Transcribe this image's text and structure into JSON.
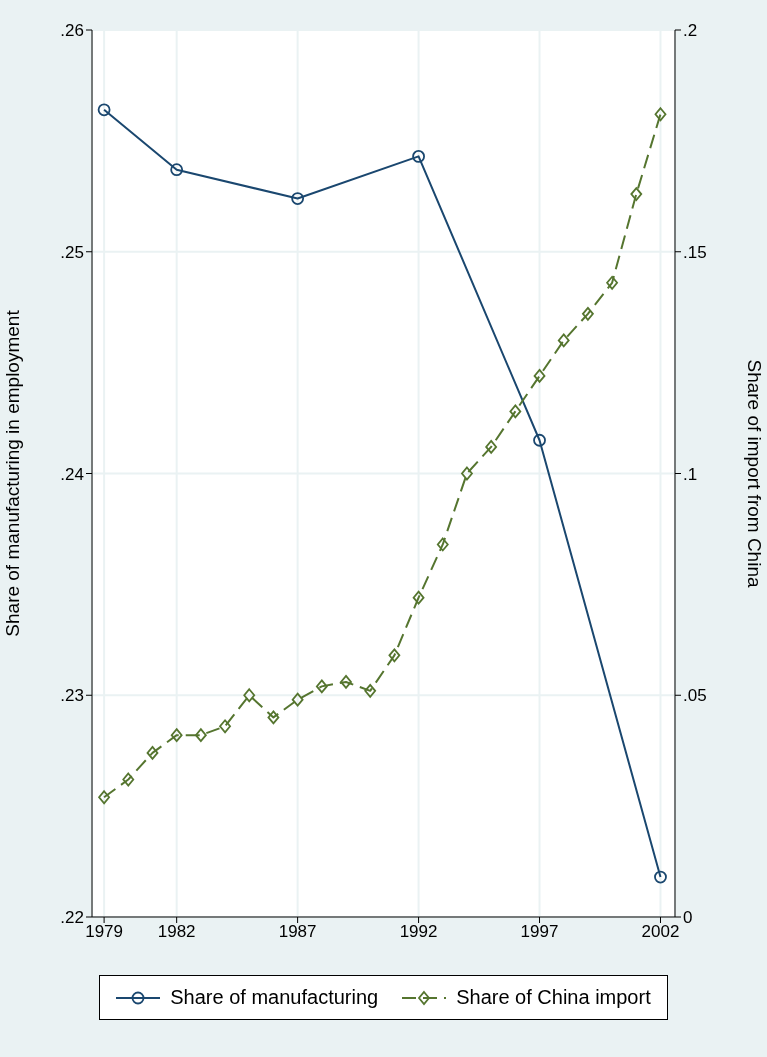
{
  "chart_data": {
    "type": "line",
    "ylabel": "Share of manufacturing in employment",
    "y2label": "Share of import from China",
    "xlim": [
      1978.5,
      2002.6
    ],
    "xticks": [
      1979,
      1982,
      1987,
      1992,
      1997,
      2002
    ],
    "ylim": [
      0.22,
      0.26
    ],
    "yticks": [
      {
        "value": 0.22,
        "label": ".22"
      },
      {
        "value": 0.23,
        "label": ".23"
      },
      {
        "value": 0.24,
        "label": ".24"
      },
      {
        "value": 0.25,
        "label": ".25"
      },
      {
        "value": 0.26,
        "label": ".26"
      }
    ],
    "y2lim": [
      0,
      0.2
    ],
    "y2ticks": [
      0,
      {
        "value": 0.05,
        "label": ".05"
      },
      {
        "value": 0.1,
        "label": ".1"
      },
      {
        "value": 0.15,
        "label": ".15"
      },
      {
        "value": 0.2,
        "label": ".2"
      }
    ],
    "grid": true,
    "legend": "bottom",
    "series": [
      {
        "name": "Share of manufacturing",
        "color": "#1a476f",
        "marker": "circle",
        "line_style": "solid",
        "x": [
          1979,
          1982,
          1987,
          1992,
          1997,
          2002
        ],
        "values": [
          0.2564,
          0.2537,
          0.2524,
          0.2543,
          0.2415,
          0.2218
        ]
      },
      {
        "name": "Share of China import",
        "color": "#55752f",
        "marker": "diamond",
        "line_style": "dashed",
        "axis": "y2",
        "x": [
          1979,
          1980,
          1981,
          1982,
          1983,
          1984,
          1985,
          1986,
          1987,
          1988,
          1989,
          1990,
          1991,
          1992,
          1993,
          1994,
          1995,
          1996,
          1997,
          1998,
          1999,
          2000,
          2001,
          2002
        ],
        "values": [
          0.027,
          0.031,
          0.037,
          0.041,
          0.041,
          0.043,
          0.05,
          0.045,
          0.049,
          0.052,
          0.053,
          0.051,
          0.059,
          0.072,
          0.084,
          0.1,
          0.106,
          0.114,
          0.122,
          0.13,
          0.136,
          0.143,
          0.163,
          0.181
        ]
      }
    ]
  }
}
